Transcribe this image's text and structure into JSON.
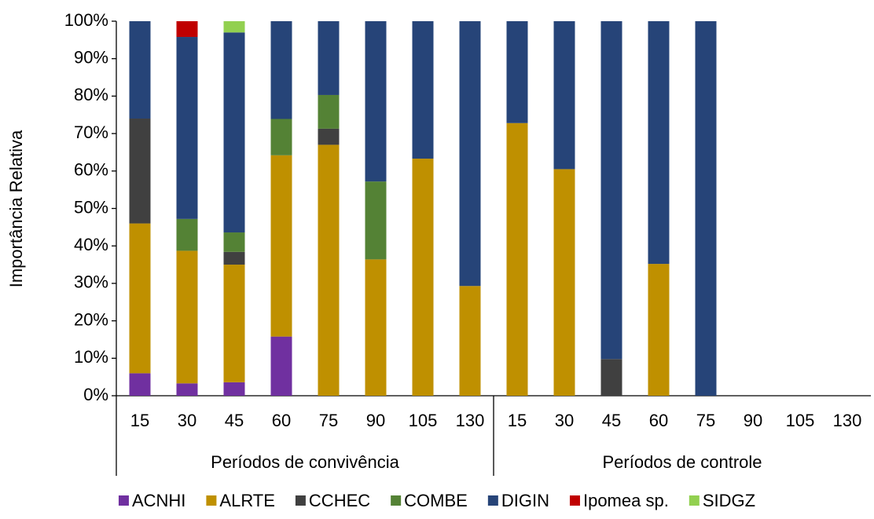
{
  "chart_data": {
    "type": "stacked-bar",
    "y_label": "Importância Relativa",
    "categories": [
      "15",
      "30",
      "45",
      "60",
      "75",
      "90",
      "105",
      "130",
      "15",
      "30",
      "45",
      "60",
      "75",
      "90",
      "105",
      "130"
    ],
    "groups": [
      "Períodos de convivência",
      "Períodos de controle"
    ],
    "series": [
      {
        "name": "ACNHI",
        "color": "#7030a0",
        "values": [
          6,
          3.3,
          3.6,
          15.8,
          0,
          0,
          0,
          0,
          0,
          0,
          0,
          0,
          0,
          0,
          0,
          0
        ]
      },
      {
        "name": "ALRTE",
        "color": "#bf9000",
        "values": [
          40,
          35.4,
          31.4,
          48.4,
          67,
          36.4,
          63.3,
          29.3,
          72.8,
          60.5,
          0,
          35.2,
          0,
          0,
          0,
          0
        ]
      },
      {
        "name": "CCHEC",
        "color": "#404040",
        "values": [
          28,
          0,
          3.4,
          0,
          4.3,
          0,
          0,
          0,
          0,
          0,
          9.8,
          0,
          0,
          0,
          0,
          0
        ]
      },
      {
        "name": "COMBE",
        "color": "#548235",
        "values": [
          0,
          8.5,
          5.2,
          9.7,
          9,
          20.8,
          0,
          0,
          0,
          0,
          0,
          0,
          0,
          0,
          0,
          0
        ]
      },
      {
        "name": "DIGIN",
        "color": "#264478",
        "values": [
          26,
          48.6,
          53.4,
          26.1,
          19.7,
          42.8,
          36.7,
          70.7,
          27.2,
          39.5,
          90.2,
          64.8,
          100,
          0,
          0,
          0
        ]
      },
      {
        "name": "Ipomea sp.",
        "color": "#c00000",
        "values": [
          0,
          4.2,
          0,
          0,
          0,
          0,
          0,
          0,
          0,
          0,
          0,
          0,
          0,
          0,
          0,
          0
        ]
      },
      {
        "name": "SIDGZ",
        "color": "#92d050",
        "values": [
          0,
          0,
          3,
          0,
          0,
          0,
          0,
          0,
          0,
          0,
          0,
          0,
          0,
          0,
          0,
          0
        ]
      }
    ],
    "ylim": [
      0,
      100
    ],
    "yticks": [
      {
        "value": 0,
        "label": "0%"
      },
      {
        "value": 10,
        "label": "10%"
      },
      {
        "value": 20,
        "label": "20%"
      },
      {
        "value": 30,
        "label": "30%"
      },
      {
        "value": 40,
        "label": "40%"
      },
      {
        "value": 50,
        "label": "50%"
      },
      {
        "value": 60,
        "label": "60%"
      },
      {
        "value": 70,
        "label": "70%"
      },
      {
        "value": 80,
        "label": "80%"
      },
      {
        "value": 90,
        "label": "90%"
      },
      {
        "value": 100,
        "label": "100%"
      }
    ],
    "legend": "bottom"
  }
}
